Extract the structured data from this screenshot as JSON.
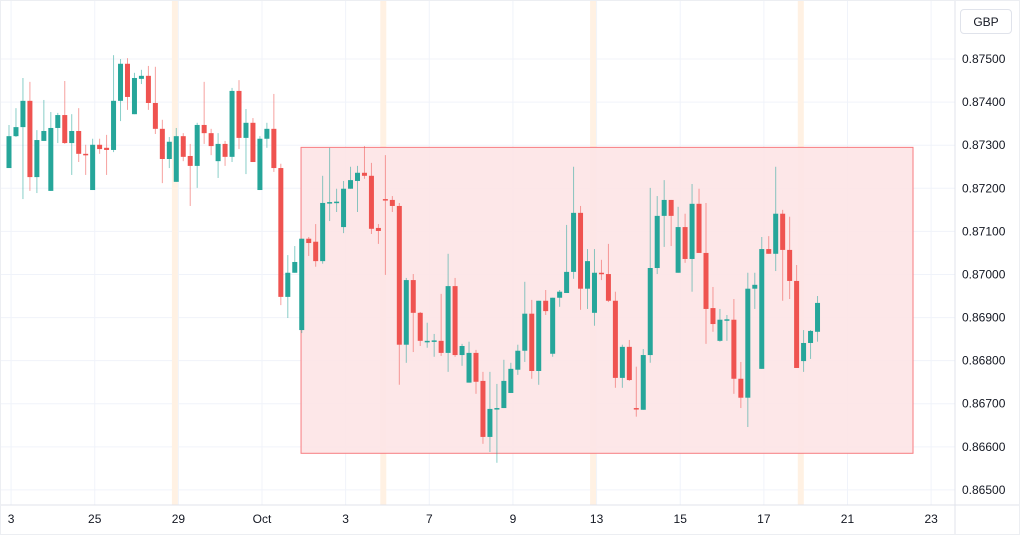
{
  "currency_button": "GBP",
  "chart_data": {
    "type": "candlestick",
    "title": "",
    "ylabel": "GBP",
    "ylim": [
      0.86465,
      0.87637
    ],
    "grid": true,
    "colors": {
      "up": "#26a69a",
      "down": "#ef5350",
      "zone_fill": "#fde4e5",
      "zone_stroke": "#f77c80",
      "highlight": "#fff1e3"
    },
    "y_ticks": [
      {
        "value": 0.875,
        "label": "0.87500"
      },
      {
        "value": 0.874,
        "label": "0.87400"
      },
      {
        "value": 0.873,
        "label": "0.87300"
      },
      {
        "value": 0.872,
        "label": "0.87200"
      },
      {
        "value": 0.871,
        "label": "0.87100"
      },
      {
        "value": 0.87,
        "label": "0.87000"
      },
      {
        "value": 0.869,
        "label": "0.86900"
      },
      {
        "value": 0.868,
        "label": "0.86800"
      },
      {
        "value": 0.867,
        "label": "0.86700"
      },
      {
        "value": 0.866,
        "label": "0.86600"
      },
      {
        "value": 0.865,
        "label": "0.86500"
      }
    ],
    "x_ticks": [
      {
        "bar": 0.3,
        "label": "3"
      },
      {
        "bar": 12.3,
        "label": "25"
      },
      {
        "bar": 24.3,
        "label": "29"
      },
      {
        "bar": 36.3,
        "label": "Oct"
      },
      {
        "bar": 48.3,
        "label": "3"
      },
      {
        "bar": 60.3,
        "label": "7"
      },
      {
        "bar": 72.3,
        "label": "9"
      },
      {
        "bar": 84.3,
        "label": "13"
      },
      {
        "bar": 96.3,
        "label": "15"
      },
      {
        "bar": 108.3,
        "label": "17"
      },
      {
        "bar": 120.3,
        "label": "21"
      },
      {
        "bar": 132.3,
        "label": "23"
      }
    ],
    "highlight_bars": [
      23.8,
      53.7,
      83.8,
      113.6
    ],
    "range_zone": {
      "bar_start": 41.9,
      "bar_end": 129.7,
      "top": 0.87295,
      "bottom": 0.86585
    },
    "candles_ohlc": [
      [
        0.87247,
        0.87347,
        0.87247,
        0.87321
      ],
      [
        0.87321,
        0.87386,
        0.87319,
        0.87342
      ],
      [
        0.87342,
        0.87456,
        0.87175,
        0.87403
      ],
      [
        0.87403,
        0.87447,
        0.87194,
        0.87226
      ],
      [
        0.87226,
        0.87335,
        0.87189,
        0.87312
      ],
      [
        0.8731,
        0.87405,
        0.8731,
        0.87333
      ],
      [
        0.87194,
        0.87377,
        0.87194,
        0.8734
      ],
      [
        0.8734,
        0.87375,
        0.87305,
        0.8737
      ],
      [
        0.8737,
        0.87449,
        0.87303,
        0.87305
      ],
      [
        0.87305,
        0.87372,
        0.87231,
        0.87333
      ],
      [
        0.87333,
        0.87386,
        0.87261,
        0.8728
      ],
      [
        0.8728,
        0.87301,
        0.87231,
        0.87277
      ],
      [
        0.87196,
        0.87315,
        0.87196,
        0.87301
      ],
      [
        0.87301,
        0.87315,
        0.8728,
        0.87291
      ],
      [
        0.87294,
        0.87324,
        0.87231,
        0.87289
      ],
      [
        0.87289,
        0.87509,
        0.87284,
        0.87403
      ],
      [
        0.87403,
        0.875,
        0.87356,
        0.87489
      ],
      [
        0.87489,
        0.87502,
        0.87382,
        0.87412
      ],
      [
        0.87372,
        0.87468,
        0.87372,
        0.87456
      ],
      [
        0.87454,
        0.87475,
        0.87442,
        0.87461
      ],
      [
        0.87461,
        0.87484,
        0.87382,
        0.87398
      ],
      [
        0.87398,
        0.87482,
        0.87326,
        0.87338
      ],
      [
        0.87338,
        0.87359,
        0.87212,
        0.87268
      ],
      [
        0.87268,
        0.87319,
        0.87247,
        0.87308
      ],
      [
        0.87215,
        0.8734,
        0.87215,
        0.87321
      ],
      [
        0.87321,
        0.87328,
        0.87263,
        0.87273
      ],
      [
        0.87275,
        0.87303,
        0.87159,
        0.87252
      ],
      [
        0.87252,
        0.87352,
        0.87201,
        0.87347
      ],
      [
        0.87347,
        0.87447,
        0.87303,
        0.87328
      ],
      [
        0.87328,
        0.87338,
        0.87277,
        0.87298
      ],
      [
        0.87263,
        0.87328,
        0.87224,
        0.87303
      ],
      [
        0.87303,
        0.8731,
        0.87252,
        0.87273
      ],
      [
        0.87273,
        0.87433,
        0.87261,
        0.87426
      ],
      [
        0.87426,
        0.87451,
        0.87291,
        0.87317
      ],
      [
        0.87317,
        0.87384,
        0.87233,
        0.87352
      ],
      [
        0.87352,
        0.87363,
        0.87261,
        0.87261
      ],
      [
        0.87196,
        0.87321,
        0.87196,
        0.87315
      ],
      [
        0.87315,
        0.87352,
        0.87294,
        0.87338
      ],
      [
        0.87338,
        0.87419,
        0.87238,
        0.87247
      ],
      [
        0.87247,
        0.87257,
        0.86929,
        0.86948
      ],
      [
        0.86948,
        0.87045,
        0.86899,
        0.87004
      ],
      [
        0.87004,
        0.87066,
        0.87004,
        0.87029
      ],
      [
        0.86871,
        0.87083,
        0.86864,
        0.87083
      ],
      [
        0.87083,
        0.87087,
        0.87043,
        0.87073
      ],
      [
        0.87076,
        0.87117,
        0.87018,
        0.87031
      ],
      [
        0.87031,
        0.87229,
        0.87025,
        0.87166
      ],
      [
        0.87166,
        0.87294,
        0.87124,
        0.87168
      ],
      [
        0.87168,
        0.87199,
        0.87145,
        0.87169
      ],
      [
        0.8711,
        0.87217,
        0.87096,
        0.87199
      ],
      [
        0.87199,
        0.8725,
        0.87199,
        0.87219
      ],
      [
        0.87217,
        0.87252,
        0.87145,
        0.87236
      ],
      [
        0.87236,
        0.87298,
        0.87222,
        0.87229
      ],
      [
        0.87229,
        0.87259,
        0.87094,
        0.87106
      ],
      [
        0.87108,
        0.87117,
        0.87071,
        0.87101
      ],
      [
        0.87175,
        0.87277,
        0.86999,
        0.87173
      ],
      [
        0.87173,
        0.87182,
        0.87145,
        0.87159
      ],
      [
        0.87159,
        0.87166,
        0.86744,
        0.86837
      ],
      [
        0.86837,
        0.86992,
        0.86795,
        0.86987
      ],
      [
        0.86987,
        0.87001,
        0.8682,
        0.86911
      ],
      [
        0.86911,
        0.86913,
        0.86834,
        0.86846
      ],
      [
        0.86844,
        0.86888,
        0.8683,
        0.86846
      ],
      [
        0.86846,
        0.86862,
        0.86809,
        0.86847
      ],
      [
        0.86846,
        0.86955,
        0.86811,
        0.86818
      ],
      [
        0.86818,
        0.87048,
        0.86774,
        0.86973
      ],
      [
        0.86973,
        0.86992,
        0.86809,
        0.86813
      ],
      [
        0.86813,
        0.86839,
        0.86788,
        0.86834
      ],
      [
        0.86749,
        0.86844,
        0.86749,
        0.86818
      ],
      [
        0.86818,
        0.86825,
        0.86723,
        0.86751
      ],
      [
        0.86753,
        0.86774,
        0.86607,
        0.86623
      ],
      [
        0.86623,
        0.86774,
        0.86588,
        0.86688
      ],
      [
        0.86688,
        0.86746,
        0.86563,
        0.8669
      ],
      [
        0.8669,
        0.86802,
        0.8669,
        0.86753
      ],
      [
        0.86725,
        0.86795,
        0.86725,
        0.86781
      ],
      [
        0.86779,
        0.86837,
        0.86767,
        0.86823
      ],
      [
        0.86823,
        0.86983,
        0.86797,
        0.86909
      ],
      [
        0.86909,
        0.86941,
        0.86758,
        0.86776
      ],
      [
        0.86776,
        0.86939,
        0.86744,
        0.86939
      ],
      [
        0.86939,
        0.86964,
        0.86906,
        0.86915
      ],
      [
        0.86816,
        0.86946,
        0.86809,
        0.86946
      ],
      [
        0.86946,
        0.86964,
        0.86925,
        0.8696
      ],
      [
        0.86957,
        0.87115,
        0.86957,
        0.87006
      ],
      [
        0.87006,
        0.8725,
        0.8699,
        0.87143
      ],
      [
        0.87143,
        0.87159,
        0.86918,
        0.86967
      ],
      [
        0.86967,
        0.87059,
        0.8692,
        0.87031
      ],
      [
        0.86911,
        0.87059,
        0.86881,
        0.87004
      ],
      [
        0.87004,
        0.87034,
        0.86987,
        0.87001
      ],
      [
        0.87001,
        0.87071,
        0.86936,
        0.86939
      ],
      [
        0.86939,
        0.8696,
        0.86737,
        0.8676
      ],
      [
        0.8676,
        0.86837,
        0.86737,
        0.86832
      ],
      [
        0.86832,
        0.86848,
        0.86753,
        0.86755
      ],
      [
        0.8669,
        0.86786,
        0.8667,
        0.86688
      ],
      [
        0.86686,
        0.86827,
        0.86686,
        0.86813
      ],
      [
        0.86813,
        0.87201,
        0.86795,
        0.87015
      ],
      [
        0.87015,
        0.87182,
        0.87001,
        0.87136
      ],
      [
        0.87136,
        0.87219,
        0.87064,
        0.87173
      ],
      [
        0.87173,
        0.87173,
        0.87066,
        0.87136
      ],
      [
        0.87004,
        0.87157,
        0.87004,
        0.8711
      ],
      [
        0.8711,
        0.87141,
        0.87027,
        0.87036
      ],
      [
        0.87036,
        0.8721,
        0.8696,
        0.87164
      ],
      [
        0.87164,
        0.87199,
        0.8705,
        0.8705
      ],
      [
        0.8705,
        0.87166,
        0.86839,
        0.8692
      ],
      [
        0.86922,
        0.86971,
        0.86867,
        0.86885
      ],
      [
        0.86846,
        0.8692,
        0.86844,
        0.86895
      ],
      [
        0.86895,
        0.86906,
        0.86846,
        0.86896
      ],
      [
        0.86895,
        0.86943,
        0.86723,
        0.86758
      ],
      [
        0.86758,
        0.86797,
        0.8669,
        0.86714
      ],
      [
        0.86714,
        0.87004,
        0.86646,
        0.86967
      ],
      [
        0.86967,
        0.87004,
        0.8692,
        0.86976
      ],
      [
        0.86781,
        0.87087,
        0.86781,
        0.87059
      ],
      [
        0.87059,
        0.87089,
        0.87048,
        0.87048
      ],
      [
        0.87048,
        0.8725,
        0.87008,
        0.87141
      ],
      [
        0.87141,
        0.8715,
        0.86939,
        0.87057
      ],
      [
        0.87057,
        0.87134,
        0.86943,
        0.86985
      ],
      [
        0.86985,
        0.87022,
        0.86783,
        0.86783
      ],
      [
        0.86799,
        0.86871,
        0.86774,
        0.86841
      ],
      [
        0.86841,
        0.86871,
        0.86804,
        0.86869
      ],
      [
        0.86867,
        0.8695,
        0.86844,
        0.86934
      ]
    ]
  }
}
